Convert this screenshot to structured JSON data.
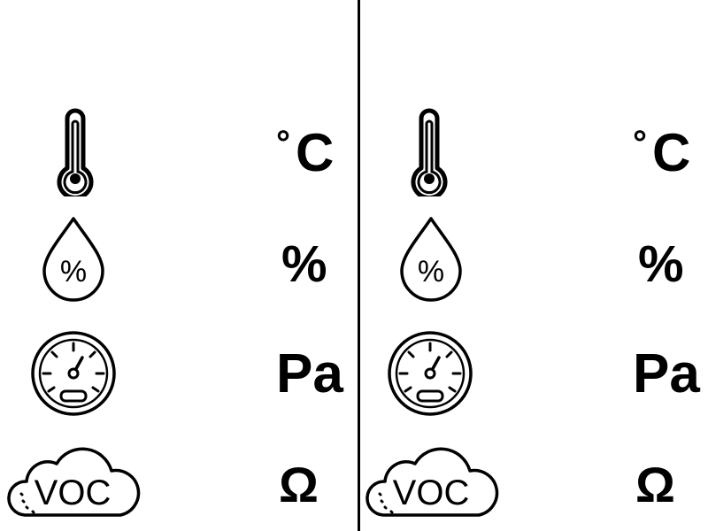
{
  "colors": {
    "ink": "#000000",
    "background": "#ffffff"
  },
  "panels": [
    {
      "id": "left",
      "rows": [
        {
          "icon": "thermometer-icon",
          "unit_degree": "°",
          "unit": "C"
        },
        {
          "icon": "humidity-drop-icon",
          "icon_text": "%",
          "unit": "%"
        },
        {
          "icon": "pressure-gauge-icon",
          "unit": "Pa"
        },
        {
          "icon": "voc-cloud-icon",
          "icon_text": "VOC",
          "unit": "Ω"
        }
      ]
    },
    {
      "id": "right",
      "rows": [
        {
          "icon": "thermometer-icon",
          "unit_degree": "°",
          "unit": "C"
        },
        {
          "icon": "humidity-drop-icon",
          "icon_text": "%",
          "unit": "%"
        },
        {
          "icon": "pressure-gauge-icon",
          "unit": "Pa"
        },
        {
          "icon": "voc-cloud-icon",
          "icon_text": "VOC",
          "unit": "Ω"
        }
      ]
    }
  ]
}
